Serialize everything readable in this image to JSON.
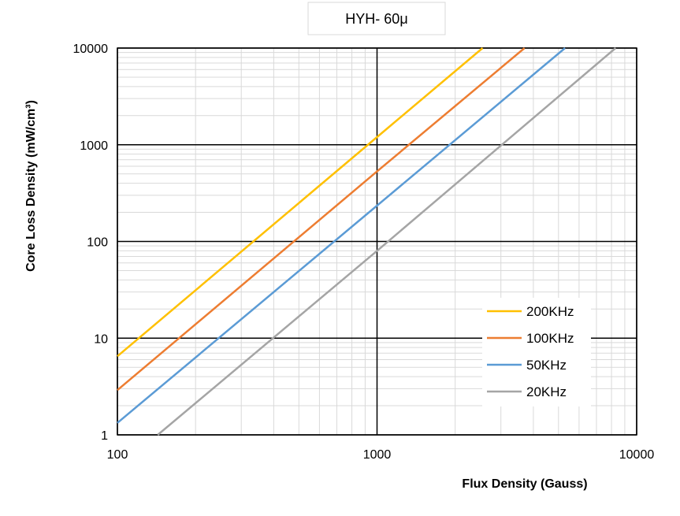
{
  "chart_data": {
    "type": "line",
    "title": "HYH- 60μ",
    "xlabel": "Flux Density (Gauss)",
    "ylabel": "Core Loss Density (mW/cm³)",
    "xscale": "log",
    "yscale": "log",
    "xlim": [
      100,
      10000
    ],
    "ylim": [
      1,
      10000
    ],
    "xticks": [
      "100",
      "1000",
      "10000"
    ],
    "yticks": [
      "1",
      "10",
      "100",
      "1000",
      "10000"
    ],
    "grid": true,
    "legend_position": "bottom-right",
    "series": [
      {
        "name": "200KHz",
        "color": "#FFC000",
        "points": [
          [
            100,
            6.5
          ],
          [
            1000,
            1200
          ],
          [
            2550,
            10000
          ]
        ]
      },
      {
        "name": "100KHz",
        "color": "#ED7D31",
        "points": [
          [
            100,
            2.9
          ],
          [
            1000,
            530
          ],
          [
            3700,
            10000
          ]
        ]
      },
      {
        "name": "50KHz",
        "color": "#5B9BD5",
        "points": [
          [
            100,
            1.33
          ],
          [
            1000,
            235
          ],
          [
            5300,
            10000
          ]
        ]
      },
      {
        "name": "20KHz",
        "color": "#A5A5A5",
        "points": [
          [
            143,
            1
          ],
          [
            1000,
            80
          ],
          [
            8300,
            10000
          ]
        ]
      }
    ]
  }
}
